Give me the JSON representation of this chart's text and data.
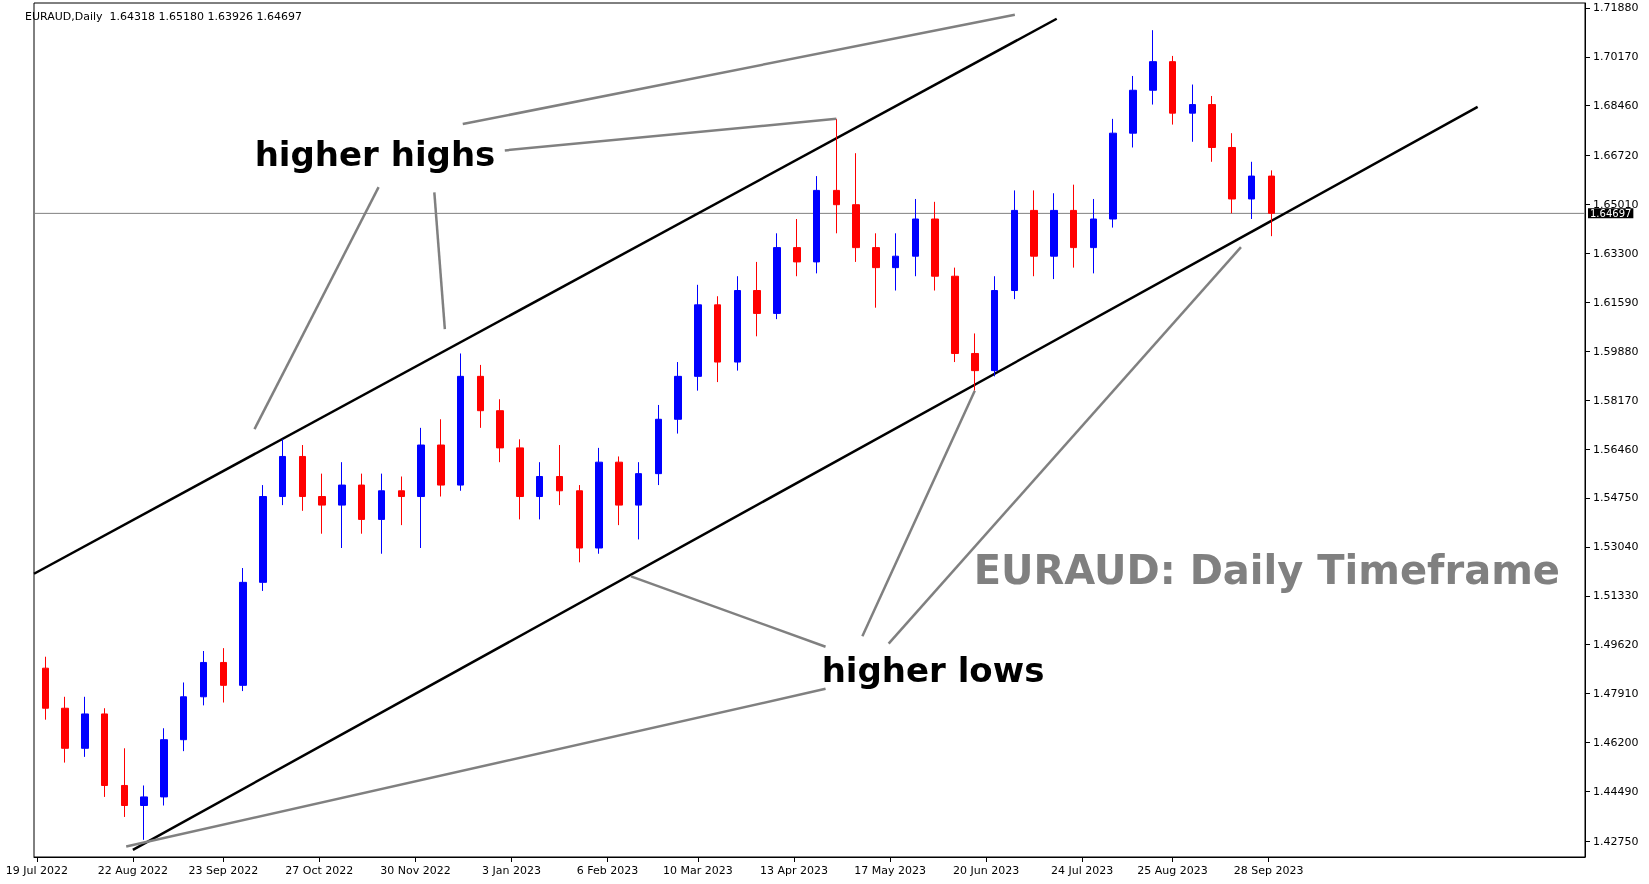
{
  "chart_data": {
    "type": "candlestick",
    "title": "EURAUD: Daily Timeframe",
    "subtitle": "EURAUD,Daily  1.64318 1.65180 1.63926 1.64697",
    "annotations": [
      {
        "text": "higher highs",
        "x": "2023-04-28",
        "y": 1.68
      },
      {
        "text": "higher lows",
        "x": "2023-06-16",
        "y": 1.585
      }
    ],
    "x": [
      "2022-07-22",
      "2022-07-29",
      "2022-08-05",
      "2022-08-12",
      "2022-08-19",
      "2022-08-26",
      "2022-09-02",
      "2022-09-09",
      "2022-09-16",
      "2022-09-23",
      "2022-09-30",
      "2022-10-07",
      "2022-10-14",
      "2022-10-21",
      "2022-10-28",
      "2022-11-04",
      "2022-11-11",
      "2022-11-18",
      "2022-11-25",
      "2022-12-02",
      "2022-12-09",
      "2022-12-16",
      "2022-12-23",
      "2022-12-30",
      "2023-01-06",
      "2023-01-13",
      "2023-01-20",
      "2023-01-27",
      "2023-02-03",
      "2023-02-10",
      "2023-02-17",
      "2023-02-24",
      "2023-03-03",
      "2023-03-10",
      "2023-03-17",
      "2023-03-24",
      "2023-03-31",
      "2023-04-07",
      "2023-04-14",
      "2023-04-21",
      "2023-04-28",
      "2023-05-05",
      "2023-05-12",
      "2023-05-19",
      "2023-05-26",
      "2023-06-02",
      "2023-06-09",
      "2023-06-16",
      "2023-06-23",
      "2023-06-30",
      "2023-07-07",
      "2023-07-14",
      "2023-07-21",
      "2023-07-28",
      "2023-08-04",
      "2023-08-11",
      "2023-08-18",
      "2023-08-25",
      "2023-09-01",
      "2023-09-08",
      "2023-09-15",
      "2023-09-22",
      "2023-09-29"
    ],
    "series": [
      {
        "type": "candlestick",
        "ohlc": [
          [
            1.488,
            1.492,
            1.47,
            1.474
          ],
          [
            1.474,
            1.478,
            1.455,
            1.46
          ],
          [
            1.46,
            1.478,
            1.457,
            1.472
          ],
          [
            1.472,
            1.474,
            1.443,
            1.447
          ],
          [
            1.447,
            1.46,
            1.436,
            1.44
          ],
          [
            1.44,
            1.447,
            1.428,
            1.443
          ],
          [
            1.443,
            1.467,
            1.44,
            1.463
          ],
          [
            1.463,
            1.483,
            1.459,
            1.478
          ],
          [
            1.478,
            1.494,
            1.475,
            1.49
          ],
          [
            1.49,
            1.495,
            1.476,
            1.482
          ],
          [
            1.482,
            1.523,
            1.48,
            1.518
          ],
          [
            1.518,
            1.552,
            1.515,
            1.548
          ],
          [
            1.548,
            1.568,
            1.545,
            1.562
          ],
          [
            1.562,
            1.566,
            1.543,
            1.548
          ],
          [
            1.548,
            1.556,
            1.535,
            1.545
          ],
          [
            1.545,
            1.56,
            1.53,
            1.552
          ],
          [
            1.552,
            1.556,
            1.535,
            1.54
          ],
          [
            1.54,
            1.556,
            1.528,
            1.55
          ],
          [
            1.55,
            1.555,
            1.538,
            1.548
          ],
          [
            1.548,
            1.572,
            1.53,
            1.566
          ],
          [
            1.566,
            1.575,
            1.548,
            1.552
          ],
          [
            1.552,
            1.598,
            1.55,
            1.59
          ],
          [
            1.59,
            1.594,
            1.572,
            1.578
          ],
          [
            1.578,
            1.582,
            1.56,
            1.565
          ],
          [
            1.565,
            1.568,
            1.54,
            1.548
          ],
          [
            1.548,
            1.56,
            1.54,
            1.555
          ],
          [
            1.555,
            1.566,
            1.545,
            1.55
          ],
          [
            1.55,
            1.552,
            1.525,
            1.53
          ],
          [
            1.53,
            1.565,
            1.528,
            1.56
          ],
          [
            1.56,
            1.562,
            1.538,
            1.545
          ],
          [
            1.545,
            1.56,
            1.533,
            1.556
          ],
          [
            1.556,
            1.58,
            1.552,
            1.575
          ],
          [
            1.575,
            1.595,
            1.57,
            1.59
          ],
          [
            1.59,
            1.622,
            1.585,
            1.615
          ],
          [
            1.615,
            1.618,
            1.588,
            1.595
          ],
          [
            1.595,
            1.625,
            1.592,
            1.62
          ],
          [
            1.62,
            1.63,
            1.604,
            1.612
          ],
          [
            1.612,
            1.64,
            1.61,
            1.635
          ],
          [
            1.635,
            1.645,
            1.625,
            1.63
          ],
          [
            1.63,
            1.66,
            1.626,
            1.655
          ],
          [
            1.655,
            1.68,
            1.64,
            1.65
          ],
          [
            1.65,
            1.668,
            1.63,
            1.635
          ],
          [
            1.635,
            1.64,
            1.614,
            1.628
          ],
          [
            1.628,
            1.64,
            1.62,
            1.632
          ],
          [
            1.632,
            1.652,
            1.625,
            1.645
          ],
          [
            1.645,
            1.651,
            1.62,
            1.625
          ],
          [
            1.625,
            1.628,
            1.595,
            1.598
          ],
          [
            1.598,
            1.605,
            1.585,
            1.592
          ],
          [
            1.592,
            1.625,
            1.59,
            1.62
          ],
          [
            1.62,
            1.655,
            1.617,
            1.648
          ],
          [
            1.648,
            1.655,
            1.625,
            1.632
          ],
          [
            1.632,
            1.654,
            1.624,
            1.648
          ],
          [
            1.648,
            1.657,
            1.628,
            1.635
          ],
          [
            1.635,
            1.652,
            1.626,
            1.645
          ],
          [
            1.645,
            1.68,
            1.642,
            1.675
          ],
          [
            1.675,
            1.695,
            1.67,
            1.69
          ],
          [
            1.69,
            1.711,
            1.685,
            1.7
          ],
          [
            1.7,
            1.702,
            1.678,
            1.682
          ],
          [
            1.682,
            1.692,
            1.672,
            1.685
          ],
          [
            1.685,
            1.688,
            1.665,
            1.67
          ],
          [
            1.67,
            1.675,
            1.647,
            1.652
          ],
          [
            1.652,
            1.665,
            1.645,
            1.66
          ],
          [
            1.66,
            1.662,
            1.639,
            1.647
          ]
        ],
        "colors": [
          "#ff0000",
          "#ff0000",
          "#0000ff",
          "#ff0000",
          "#ff0000",
          "#0000ff",
          "#0000ff",
          "#0000ff",
          "#0000ff",
          "#ff0000",
          "#0000ff",
          "#0000ff",
          "#0000ff",
          "#ff0000",
          "#ff0000",
          "#0000ff",
          "#ff0000",
          "#0000ff",
          "#ff0000",
          "#0000ff",
          "#ff0000",
          "#0000ff",
          "#ff0000",
          "#ff0000",
          "#ff0000",
          "#0000ff",
          "#ff0000",
          "#ff0000",
          "#0000ff",
          "#ff0000",
          "#0000ff",
          "#0000ff",
          "#0000ff",
          "#0000ff",
          "#ff0000",
          "#0000ff",
          "#ff0000",
          "#0000ff",
          "#ff0000",
          "#0000ff",
          "#ff0000",
          "#ff0000",
          "#ff0000",
          "#0000ff",
          "#0000ff",
          "#ff0000",
          "#ff0000",
          "#ff0000",
          "#0000ff",
          "#0000ff",
          "#ff0000",
          "#0000ff",
          "#ff0000",
          "#0000ff",
          "#0000ff",
          "#0000ff",
          "#0000ff",
          "#ff0000",
          "#0000ff",
          "#ff0000",
          "#ff0000",
          "#0000ff",
          "#ff0000"
        ]
      },
      {
        "type": "line",
        "x": [
          "2022-07-18",
          "2023-07-15"
        ],
        "values": [
          1.521,
          1.715
        ],
        "color": "#000000"
      },
      {
        "type": "line",
        "x": [
          "2022-08-22",
          "2023-12-11"
        ],
        "values": [
          1.4245,
          1.6842
        ],
        "color": "#000000"
      }
    ],
    "xlim": [
      "2022-07-18",
      "2024-01-18"
    ],
    "xticks": [
      {
        "value": "2022-07-19",
        "label": "19 Jul 2022"
      },
      {
        "value": "2022-08-22",
        "label": "22 Aug 2022"
      },
      {
        "value": "2022-09-23",
        "label": "23 Sep 2022"
      },
      {
        "value": "2022-10-27",
        "label": "27 Oct 2022"
      },
      {
        "value": "2022-11-30",
        "label": "30 Nov 2022"
      },
      {
        "value": "2023-01-03",
        "label": "3 Jan 2023"
      },
      {
        "value": "2023-02-06",
        "label": "6 Feb 2023"
      },
      {
        "value": "2023-03-10",
        "label": "10 Mar 2023"
      },
      {
        "value": "2023-04-13",
        "label": "13 Apr 2023"
      },
      {
        "value": "2023-05-17",
        "label": "17 May 2023"
      },
      {
        "value": "2023-06-20",
        "label": "20 Jun 2023"
      },
      {
        "value": "2023-07-24",
        "label": "24 Jul 2023"
      },
      {
        "value": "2023-08-25",
        "label": "25 Aug 2023"
      },
      {
        "value": "2023-09-28",
        "label": "28 Sep 2023"
      }
    ],
    "ylim": [
      1.422,
      1.7205
    ],
    "yticks": [
      {
        "value": 1.4275,
        "label": "1.42750"
      },
      {
        "value": 1.4449,
        "label": "1.44490"
      },
      {
        "value": 1.462,
        "label": "1.46200"
      },
      {
        "value": 1.4791,
        "label": "1.47910"
      },
      {
        "value": 1.4962,
        "label": "1.49620"
      },
      {
        "value": 1.5133,
        "label": "1.51330"
      },
      {
        "value": 1.5304,
        "label": "1.53040"
      },
      {
        "value": 1.5475,
        "label": "1.54750"
      },
      {
        "value": 1.5646,
        "label": "1.56460"
      },
      {
        "value": 1.5817,
        "label": "1.58170"
      },
      {
        "value": 1.5988,
        "label": "1.59880"
      },
      {
        "value": 1.6159,
        "label": "1.61590"
      },
      {
        "value": 1.633,
        "label": "1.63300"
      },
      {
        "value": 1.6501,
        "label": "1.65010"
      },
      {
        "value": 1.6672,
        "label": "1.66720"
      },
      {
        "value": 1.6846,
        "label": "1.68460"
      },
      {
        "value": 1.7017,
        "label": "1.70170"
      },
      {
        "value": 1.7188,
        "label": "1.71880"
      }
    ],
    "ref_lines": [
      {
        "axis": "y",
        "value": 1.64697,
        "label": "1.64697",
        "color": "#808080"
      }
    ],
    "grid": false
  }
}
